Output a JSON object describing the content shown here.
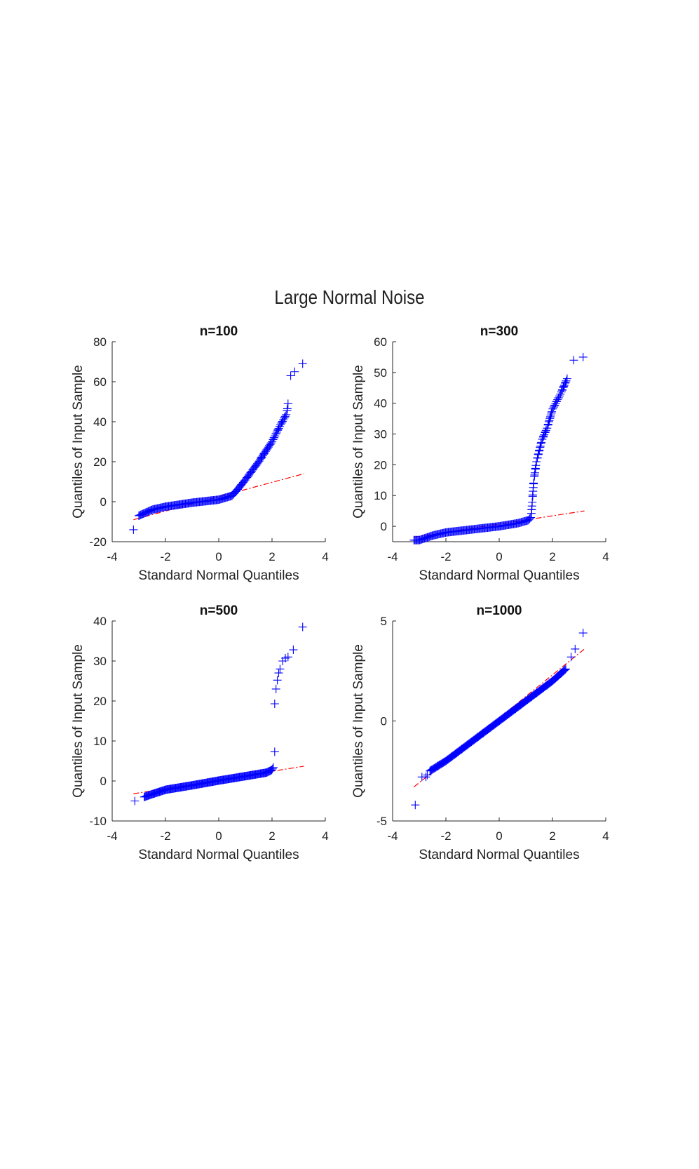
{
  "figure": {
    "suptitle": "Large Normal Noise",
    "colors": {
      "marker": "#0000ff",
      "reference_line": "#ff0000",
      "axes": "#262626",
      "text": "#222222"
    }
  },
  "chart_data": [
    {
      "type": "scatter",
      "title": "n=100",
      "xlabel": "Standard Normal Quantiles",
      "ylabel": "Quantiles of Input Sample",
      "xlim": [
        -4,
        4
      ],
      "ylim": [
        -20,
        80
      ],
      "xticks": [
        -4,
        -2,
        0,
        2,
        4
      ],
      "yticks": [
        -20,
        0,
        20,
        40,
        60,
        80
      ],
      "reference_line": {
        "style": "dash-dot",
        "points": [
          [
            -3.2,
            -9
          ],
          [
            3.2,
            14
          ]
        ]
      },
      "outliers": [
        [
          -3.2,
          -14
        ],
        [
          2.7,
          63
        ],
        [
          2.85,
          65
        ],
        [
          3.15,
          69
        ]
      ],
      "bulk": [
        [
          -3.0,
          -7
        ],
        [
          -2.5,
          -4
        ],
        [
          -2.0,
          -2.5
        ],
        [
          -1.0,
          -0.5
        ],
        [
          0.0,
          1
        ],
        [
          0.5,
          3
        ],
        [
          0.7,
          6
        ],
        [
          1.0,
          11
        ],
        [
          1.5,
          20
        ],
        [
          2.0,
          30
        ],
        [
          2.3,
          38
        ],
        [
          2.55,
          44
        ],
        [
          2.6,
          49
        ]
      ]
    },
    {
      "type": "scatter",
      "title": "n=300",
      "xlabel": "Standard Normal Quantiles",
      "ylabel": "Quantiles of Input Sample",
      "xlim": [
        -4,
        4
      ],
      "ylim": [
        -5,
        60
      ],
      "xticks": [
        -4,
        -2,
        0,
        2,
        4
      ],
      "yticks": [
        0,
        10,
        20,
        30,
        40,
        50,
        60
      ],
      "reference_line": {
        "style": "dash-dot",
        "points": [
          [
            -3.2,
            -3.5
          ],
          [
            3.2,
            5
          ]
        ]
      },
      "outliers": [
        [
          2.8,
          54
        ],
        [
          3.15,
          55
        ]
      ],
      "bulk": [
        [
          -3.2,
          -4.5
        ],
        [
          -3.0,
          -4.5
        ],
        [
          -2.5,
          -3
        ],
        [
          -2.0,
          -2
        ],
        [
          -1.0,
          -1
        ],
        [
          0.0,
          0
        ],
        [
          0.7,
          1
        ],
        [
          1.1,
          2
        ],
        [
          1.2,
          3
        ],
        [
          1.25,
          9
        ],
        [
          1.3,
          15
        ],
        [
          1.4,
          21
        ],
        [
          1.6,
          28
        ],
        [
          1.8,
          32
        ],
        [
          2.0,
          38
        ],
        [
          2.3,
          43
        ],
        [
          2.55,
          48
        ]
      ]
    },
    {
      "type": "scatter",
      "title": "n=500",
      "xlabel": "Standard Normal Quantiles",
      "ylabel": "Quantiles of Input Sample",
      "xlim": [
        -4,
        4
      ],
      "ylim": [
        -10,
        40
      ],
      "xticks": [
        -4,
        -2,
        0,
        2,
        4
      ],
      "yticks": [
        -10,
        0,
        10,
        20,
        30,
        40
      ],
      "reference_line": {
        "style": "dash-dot",
        "points": [
          [
            -3.2,
            -3.2
          ],
          [
            3.2,
            3.7
          ]
        ]
      },
      "outliers": [
        [
          -3.15,
          -5
        ],
        [
          2.1,
          7.3
        ],
        [
          2.1,
          19.3
        ],
        [
          2.15,
          23
        ],
        [
          2.2,
          25.2
        ],
        [
          2.25,
          27
        ],
        [
          2.3,
          28
        ],
        [
          2.4,
          30
        ],
        [
          2.5,
          30.7
        ],
        [
          2.6,
          31
        ],
        [
          2.8,
          32.8
        ],
        [
          3.15,
          38.5
        ]
      ],
      "bulk": [
        [
          -2.8,
          -4
        ],
        [
          -2.5,
          -3.3
        ],
        [
          -2.0,
          -2.2
        ],
        [
          -1.0,
          -1.1
        ],
        [
          0.0,
          0.1
        ],
        [
          1.0,
          1.2
        ],
        [
          1.8,
          2.1
        ],
        [
          2.0,
          2.8
        ],
        [
          2.05,
          3.4
        ]
      ]
    },
    {
      "type": "scatter",
      "title": "n=1000",
      "xlabel": "Standard Normal Quantiles",
      "ylabel": "Quantiles of Input Sample",
      "xlim": [
        -4,
        4
      ],
      "ylim": [
        -5,
        5
      ],
      "xticks": [
        -4,
        -2,
        0,
        2,
        4
      ],
      "yticks": [
        -5,
        0,
        5
      ],
      "reference_line": {
        "style": "dash-dot",
        "points": [
          [
            -3.2,
            -3.3
          ],
          [
            3.2,
            3.6
          ]
        ]
      },
      "outliers": [
        [
          -3.15,
          -4.2
        ],
        [
          -2.9,
          -2.8
        ],
        [
          -2.75,
          -2.8
        ],
        [
          -2.7,
          -2.7
        ],
        [
          2.7,
          3.2
        ],
        [
          2.85,
          3.6
        ],
        [
          3.15,
          4.4
        ]
      ],
      "bulk": [
        [
          -2.6,
          -2.5
        ],
        [
          -2.0,
          -2.0
        ],
        [
          -1.0,
          -1.0
        ],
        [
          0.0,
          0.0
        ],
        [
          1.0,
          1.0
        ],
        [
          2.0,
          2.0
        ],
        [
          2.5,
          2.6
        ]
      ]
    }
  ]
}
